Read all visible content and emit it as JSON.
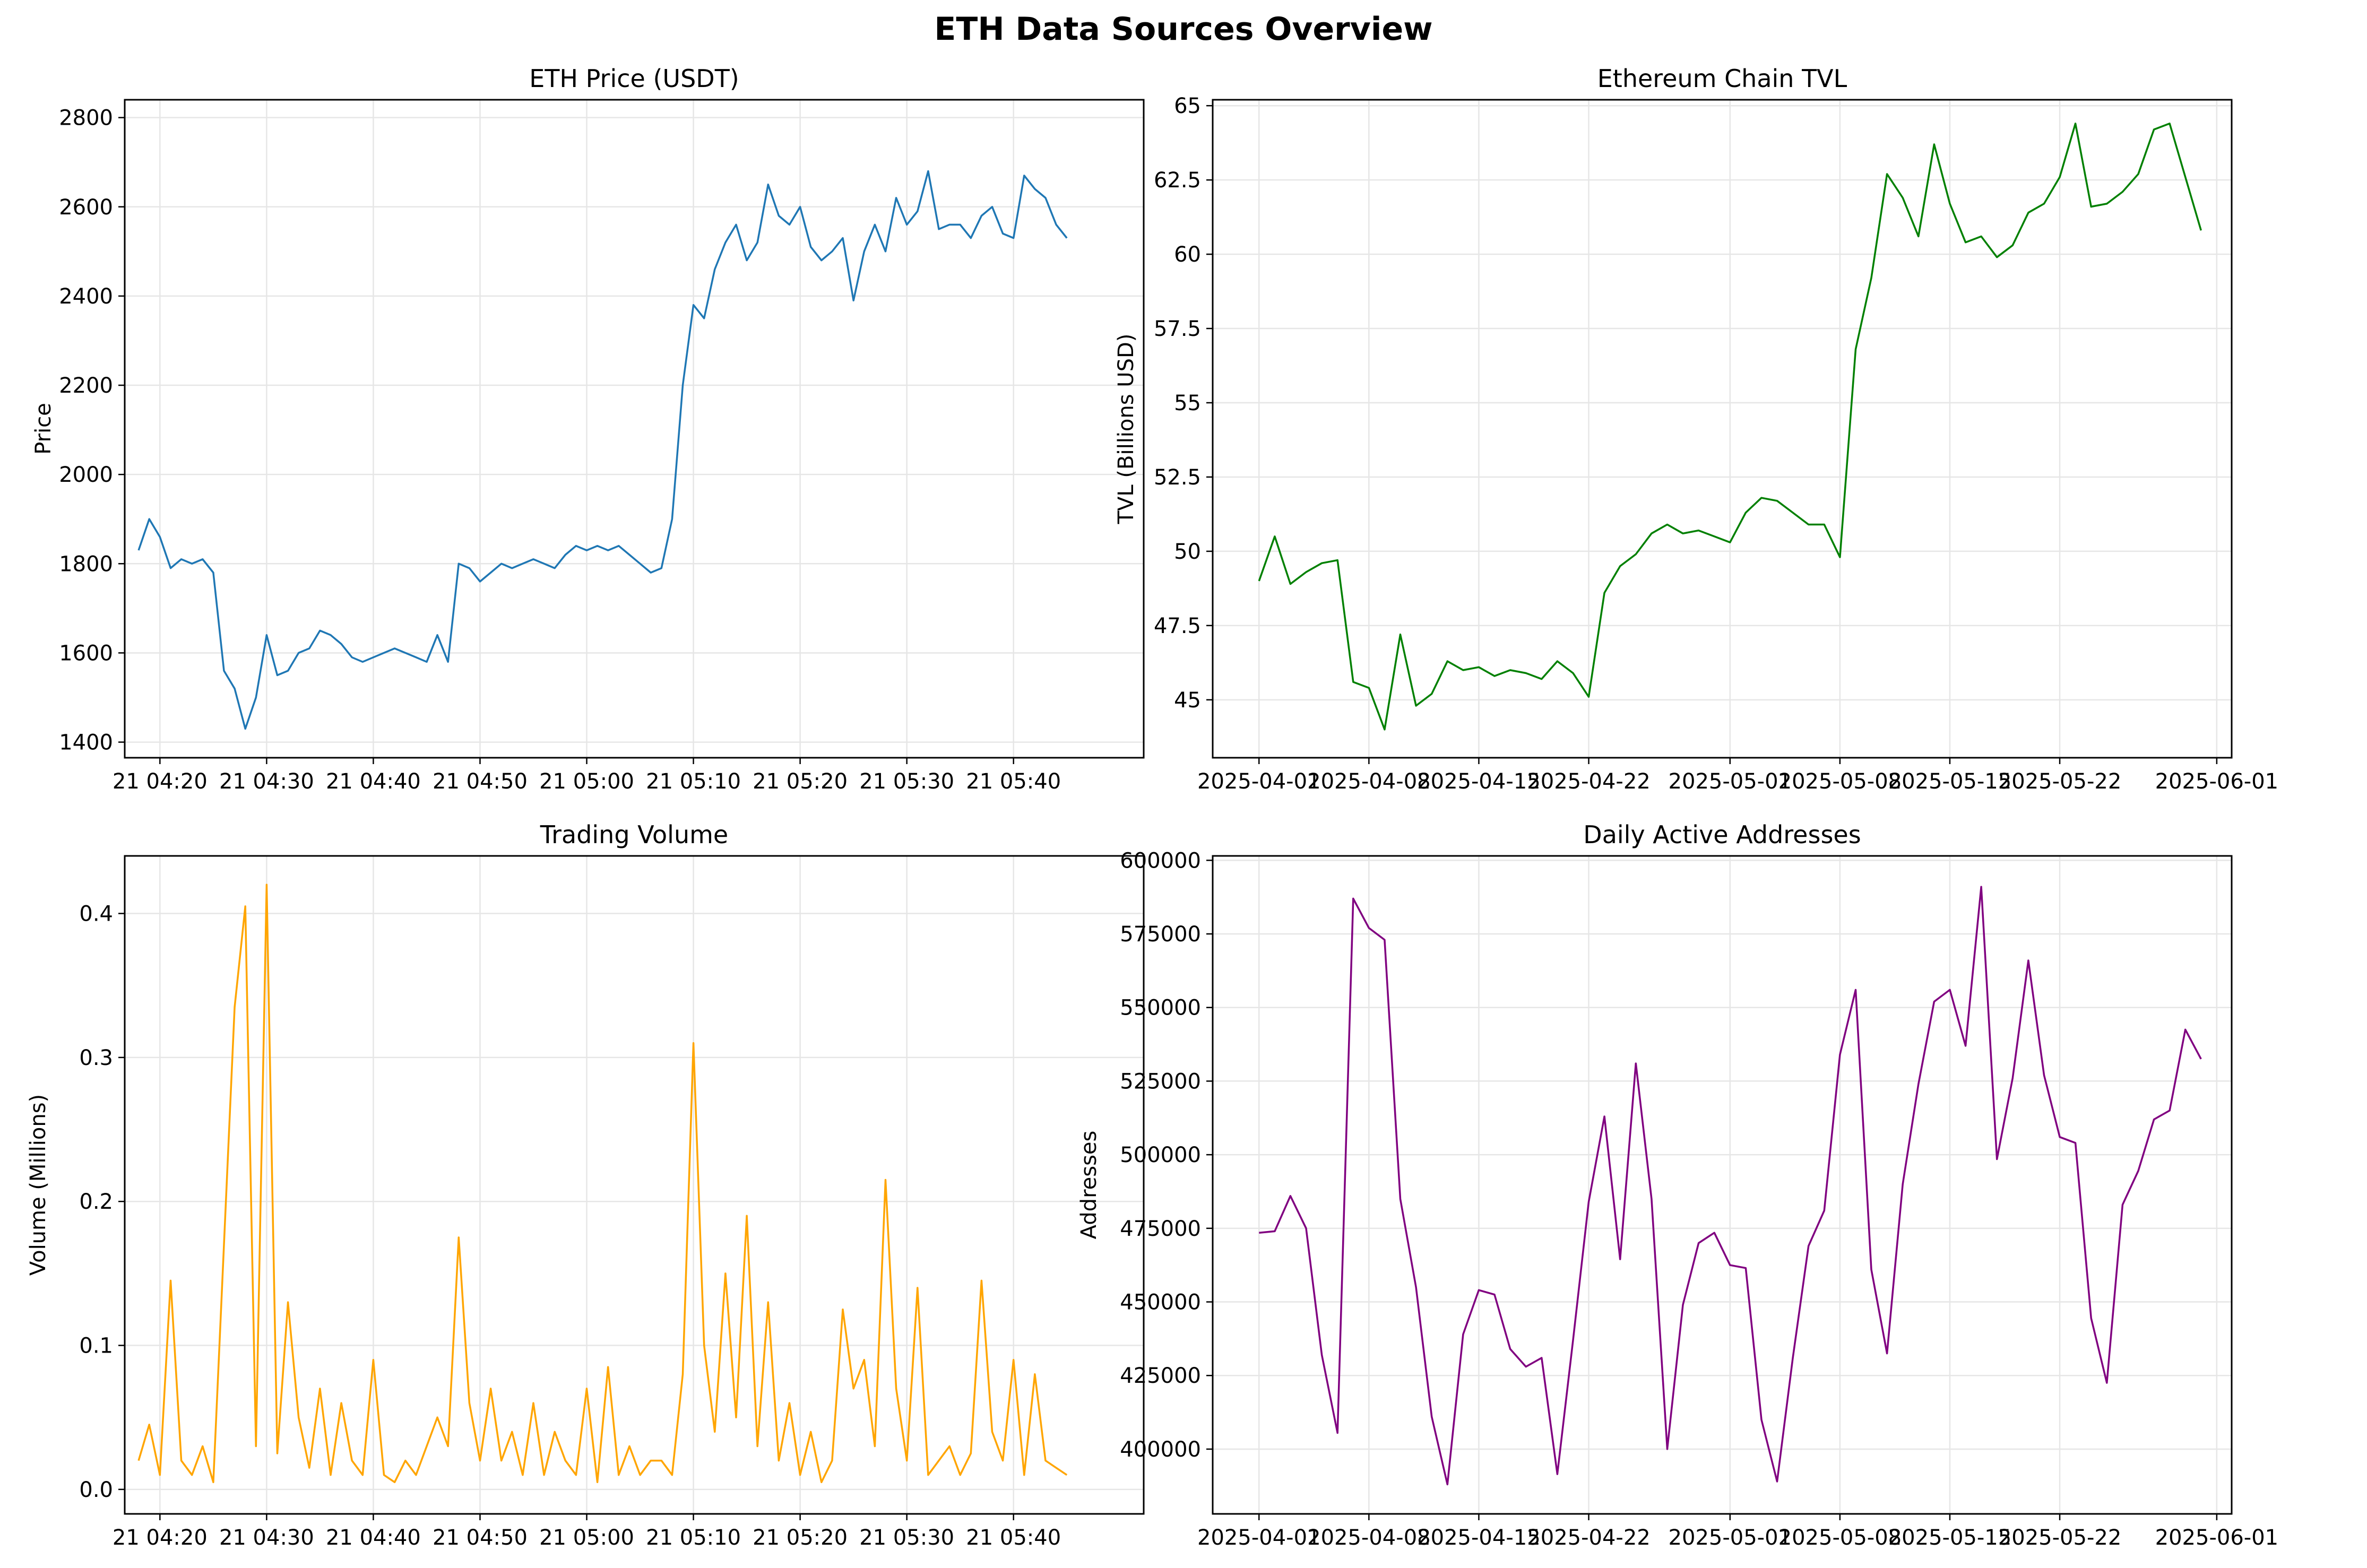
{
  "figure": {
    "title": "ETH Data Sources Overview"
  },
  "colors": {
    "price": "#1f77b4",
    "tvl": "#008000",
    "volume": "#ffa500",
    "addresses": "#800080",
    "grid": "#e6e6e6",
    "axis": "#000000"
  },
  "chart_data": [
    {
      "id": "price",
      "type": "line",
      "title": "ETH Price (USDT)",
      "xlabel": "",
      "ylabel": "Price",
      "xlim": [
        -1.3,
        94.2
      ],
      "ylim": [
        1365,
        2840
      ],
      "xtick_positions": [
        2,
        12,
        22,
        32,
        42,
        52,
        62,
        72,
        82
      ],
      "xticks": [
        "21 04:20",
        "21 04:30",
        "21 04:40",
        "21 04:50",
        "21 05:00",
        "21 05:10",
        "21 05:20",
        "21 05:30",
        "21 05:40"
      ],
      "yticks": [
        1400,
        1600,
        1800,
        2000,
        2200,
        2400,
        2600,
        2800
      ],
      "x_unit": "minutes after 21 04:18",
      "grid": true,
      "series": [
        {
          "x": [
            0,
            1,
            2,
            3,
            4,
            5,
            6,
            7,
            8,
            9,
            10,
            11,
            12,
            13,
            14,
            15,
            16,
            17,
            18,
            19,
            20,
            21,
            22,
            23,
            24,
            25,
            26,
            27,
            28,
            29,
            30,
            31,
            32,
            33,
            34,
            35,
            36,
            37,
            38,
            39,
            40,
            41,
            42,
            43,
            44,
            45,
            46,
            47,
            48,
            49,
            50,
            51,
            52,
            53,
            54,
            55,
            56,
            57,
            58,
            59,
            60,
            61,
            62,
            63,
            64,
            65,
            66,
            67,
            68,
            69,
            70,
            71,
            72,
            73,
            74,
            75,
            76,
            77,
            78,
            79,
            80,
            81,
            82,
            83,
            84,
            85,
            86,
            87
          ],
          "y": [
            1830,
            1900,
            1860,
            1790,
            1810,
            1800,
            1810,
            1780,
            1560,
            1520,
            1430,
            1500,
            1640,
            1550,
            1560,
            1600,
            1610,
            1650,
            1640,
            1620,
            1590,
            1580,
            1590,
            1600,
            1610,
            1600,
            1590,
            1580,
            1640,
            1580,
            1800,
            1790,
            1760,
            1780,
            1800,
            1790,
            1800,
            1810,
            1800,
            1790,
            1820,
            1840,
            1830,
            1840,
            1830,
            1840,
            1820,
            1800,
            1780,
            1790,
            1900,
            2200,
            2380,
            2350,
            2460,
            2520,
            2560,
            2480,
            2520,
            2650,
            2580,
            2560,
            2600,
            2510,
            2480,
            2500,
            2530,
            2390,
            2500,
            2560,
            2500,
            2620,
            2560,
            2590,
            2680,
            2550,
            2560,
            2560,
            2530,
            2580,
            2600,
            2540,
            2530,
            2670,
            2640,
            2620,
            2560,
            2530
          ]
        }
      ]
    },
    {
      "id": "tvl",
      "type": "line",
      "title": "Ethereum Chain TVL",
      "xlabel": "",
      "ylabel": "TVL (Billions USD)",
      "xlim": [
        -2.95,
        61.95
      ],
      "ylim": [
        43.05,
        65.2
      ],
      "xticks": [
        "2025-04-01",
        "2025-04-08",
        "2025-04-15",
        "2025-04-22",
        "2025-05-01",
        "2025-05-08",
        "2025-05-15",
        "2025-05-22",
        "2025-06-01"
      ],
      "xtick_positions": [
        0,
        7,
        14,
        21,
        30,
        37,
        44,
        51,
        61
      ],
      "yticks": [
        45.0,
        47.5,
        50.0,
        52.5,
        55.0,
        57.5,
        60.0,
        62.5,
        65.0
      ],
      "x_unit": "days since 2025-04-01",
      "grid": true,
      "series": [
        {
          "x": [
            0,
            1,
            2,
            3,
            4,
            5,
            6,
            7,
            8,
            9,
            10,
            11,
            12,
            13,
            14,
            15,
            16,
            17,
            18,
            19,
            20,
            21,
            22,
            23,
            24,
            25,
            26,
            27,
            28,
            29,
            30,
            31,
            32,
            33,
            34,
            35,
            36,
            37,
            38,
            39,
            40,
            41,
            42,
            43,
            44,
            45,
            46,
            47,
            48,
            49,
            50,
            51,
            52,
            53,
            54,
            55,
            56,
            57,
            58,
            59,
            60
          ],
          "y": [
            49.0,
            50.5,
            48.9,
            49.3,
            49.6,
            49.7,
            45.6,
            45.4,
            44.0,
            47.2,
            44.8,
            45.2,
            46.3,
            46.0,
            46.1,
            45.8,
            46.0,
            45.9,
            45.7,
            46.3,
            45.9,
            45.1,
            48.6,
            49.5,
            49.9,
            50.6,
            50.9,
            50.6,
            50.7,
            50.5,
            50.3,
            51.3,
            51.8,
            51.7,
            51.3,
            50.9,
            50.9,
            49.8,
            56.8,
            59.2,
            62.7,
            61.9,
            60.6,
            63.7,
            61.7,
            60.4,
            60.6,
            59.9,
            60.3,
            61.4,
            61.7,
            62.6,
            64.4,
            61.6,
            61.7,
            62.1,
            62.7,
            64.2,
            64.4,
            62.6,
            60.8
          ]
        }
      ]
    },
    {
      "id": "volume",
      "type": "line",
      "title": "Trading Volume",
      "xlabel": "",
      "ylabel": "Volume (Millions)",
      "xlim": [
        -1.3,
        94.2
      ],
      "ylim": [
        -0.017,
        0.44
      ],
      "xtick_positions": [
        2,
        12,
        22,
        32,
        42,
        52,
        62,
        72,
        82
      ],
      "xticks": [
        "21 04:20",
        "21 04:30",
        "21 04:40",
        "21 04:50",
        "21 05:00",
        "21 05:10",
        "21 05:20",
        "21 05:30",
        "21 05:40"
      ],
      "yticks": [
        "0.0",
        "0.1",
        "0.2",
        "0.3",
        "0.4"
      ],
      "ytick_values": [
        0.0,
        0.1,
        0.2,
        0.3,
        0.4
      ],
      "x_unit": "minutes after 21 04:18",
      "grid": true,
      "series": [
        {
          "x": [
            0,
            1,
            2,
            3,
            4,
            5,
            6,
            7,
            8,
            9,
            10,
            11,
            12,
            13,
            14,
            15,
            16,
            17,
            18,
            19,
            20,
            21,
            22,
            23,
            24,
            25,
            26,
            27,
            28,
            29,
            30,
            31,
            32,
            33,
            34,
            35,
            36,
            37,
            38,
            39,
            40,
            41,
            42,
            43,
            44,
            45,
            46,
            47,
            48,
            49,
            50,
            51,
            52,
            53,
            54,
            55,
            56,
            57,
            58,
            59,
            60,
            61,
            62,
            63,
            64,
            65,
            66,
            67,
            68,
            69,
            70,
            71,
            72,
            73,
            74,
            75,
            76,
            77,
            78,
            79,
            80,
            81,
            82,
            83,
            84,
            85,
            86,
            87
          ],
          "y": [
            0.02,
            0.045,
            0.01,
            0.145,
            0.02,
            0.01,
            0.03,
            0.005,
            0.17,
            0.335,
            0.405,
            0.03,
            0.42,
            0.025,
            0.13,
            0.05,
            0.015,
            0.07,
            0.01,
            0.06,
            0.02,
            0.01,
            0.09,
            0.01,
            0.005,
            0.02,
            0.01,
            0.03,
            0.05,
            0.03,
            0.175,
            0.06,
            0.02,
            0.07,
            0.02,
            0.04,
            0.01,
            0.06,
            0.01,
            0.04,
            0.02,
            0.01,
            0.07,
            0.005,
            0.085,
            0.01,
            0.03,
            0.01,
            0.02,
            0.02,
            0.01,
            0.08,
            0.31,
            0.1,
            0.04,
            0.15,
            0.05,
            0.19,
            0.03,
            0.13,
            0.02,
            0.06,
            0.01,
            0.04,
            0.005,
            0.02,
            0.125,
            0.07,
            0.09,
            0.03,
            0.215,
            0.07,
            0.02,
            0.14,
            0.01,
            0.02,
            0.03,
            0.01,
            0.025,
            0.145,
            0.04,
            0.02,
            0.09,
            0.01,
            0.08,
            0.02,
            0.015,
            0.01
          ]
        }
      ]
    },
    {
      "id": "addresses",
      "type": "line",
      "title": "Daily Active Addresses",
      "xlabel": "",
      "ylabel": "Addresses",
      "xlim": [
        -2.95,
        61.95
      ],
      "ylim": [
        378000,
        601500
      ],
      "xticks": [
        "2025-04-01",
        "2025-04-08",
        "2025-04-15",
        "2025-04-22",
        "2025-05-01",
        "2025-05-08",
        "2025-05-15",
        "2025-05-22",
        "2025-06-01"
      ],
      "xtick_positions": [
        0,
        7,
        14,
        21,
        30,
        37,
        44,
        51,
        61
      ],
      "yticks": [
        400000,
        425000,
        450000,
        475000,
        500000,
        525000,
        550000,
        575000,
        600000
      ],
      "x_unit": "days since 2025-04-01",
      "grid": true,
      "series": [
        {
          "x": [
            0,
            1,
            2,
            3,
            4,
            5,
            6,
            7,
            8,
            9,
            10,
            11,
            12,
            13,
            14,
            15,
            16,
            17,
            18,
            19,
            20,
            21,
            22,
            23,
            24,
            25,
            26,
            27,
            28,
            29,
            30,
            31,
            32,
            33,
            34,
            35,
            36,
            37,
            38,
            39,
            40,
            41,
            42,
            43,
            44,
            45,
            46,
            47,
            48,
            49,
            50,
            51,
            52,
            53,
            54,
            55,
            56,
            57,
            58,
            59,
            60
          ],
          "y": [
            473500,
            474000,
            486000,
            475000,
            432000,
            405500,
            587000,
            577000,
            573000,
            485000,
            455000,
            411000,
            388000,
            439000,
            454000,
            452500,
            434000,
            428000,
            431000,
            391500,
            437000,
            484000,
            513000,
            464500,
            531000,
            485000,
            400000,
            449000,
            470000,
            473500,
            462500,
            461500,
            410000,
            389000,
            431000,
            469000,
            481000,
            534000,
            556000,
            461000,
            432500,
            490000,
            524000,
            552000,
            556000,
            537000,
            591000,
            498500,
            526000,
            566000,
            527000,
            506000,
            504000,
            444500,
            422500,
            483000,
            494500,
            512000,
            515000,
            542500,
            532500
          ]
        }
      ]
    }
  ]
}
